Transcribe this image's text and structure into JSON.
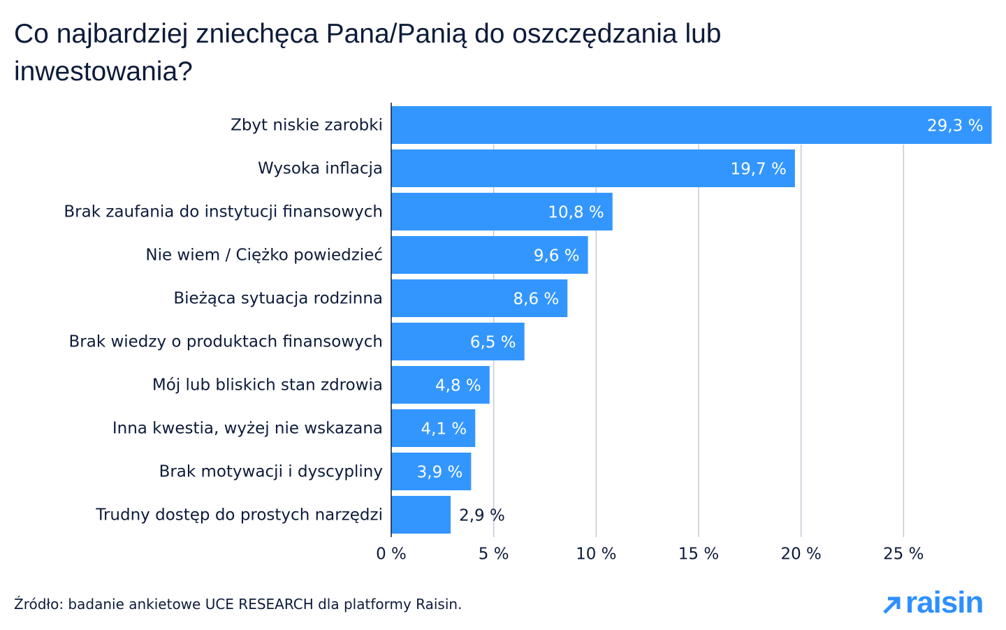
{
  "chart_data": {
    "type": "bar",
    "orientation": "horizontal",
    "title": "Co najbardziej zniechęca Pana/Panią do oszczędzania lub inwestowania?",
    "categories": [
      "Zbyt niskie zarobki",
      "Wysoka inflacja",
      "Brak zaufania do instytucji finansowych",
      "Nie wiem / Ciężko powiedzieć",
      "Bieżąca sytuacja rodzinna",
      "Brak wiedzy o produktach finansowych",
      "Mój lub bliskich stan zdrowia",
      "Inna kwestia, wyżej nie wskazana",
      "Brak motywacji i dyscypliny",
      "Trudny dostęp do prostych narzędzi"
    ],
    "values": [
      29.3,
      19.7,
      10.8,
      9.6,
      8.6,
      6.5,
      4.8,
      4.1,
      3.9,
      2.9
    ],
    "value_labels": [
      "29,3 %",
      "19,7 %",
      "10,8 %",
      "9,6 %",
      "8,6 %",
      "6,5 %",
      "4,8 %",
      "4,1 %",
      "3,9 %",
      "2,9 %"
    ],
    "color": "#3396ff",
    "xlim": [
      0,
      30
    ],
    "xticks": [
      {
        "value": 0,
        "label": "0 %"
      },
      {
        "value": 5,
        "label": "5 %"
      },
      {
        "value": 10,
        "label": "10 %"
      },
      {
        "value": 15,
        "label": "15 %"
      },
      {
        "value": 20,
        "label": "20 %"
      },
      {
        "value": 25,
        "label": "25 %"
      }
    ],
    "grid": true,
    "source": "Źródło: badanie ankietowe UCE RESEARCH dla platformy Raisin."
  },
  "logo": "raisin"
}
